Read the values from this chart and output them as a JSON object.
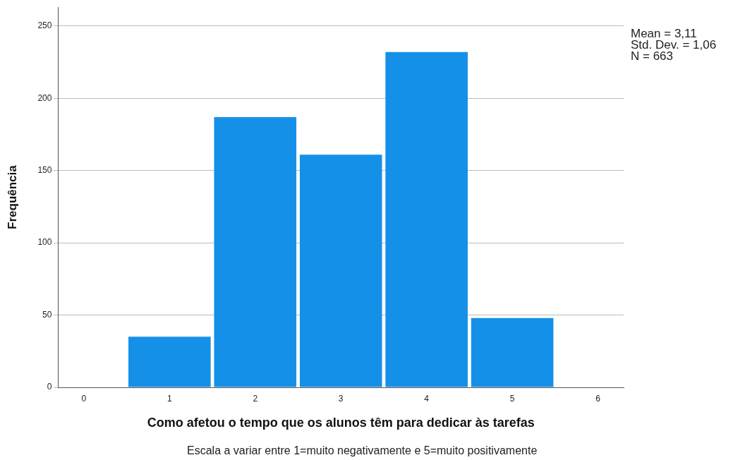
{
  "chart_data": {
    "type": "histogram",
    "xlabel": "Como afetou o tempo que os alunos têm para dedicar às tarefas",
    "ylabel": "Frequência",
    "bins": [
      0.5,
      1.5,
      2.5,
      3.5,
      4.5,
      5.5
    ],
    "values": [
      35,
      187,
      161,
      232,
      48
    ],
    "color": "#1490e8",
    "xlim": [
      -0.3,
      6.3
    ],
    "xticks": [
      0,
      1,
      2,
      3,
      4,
      5,
      6
    ],
    "ylim": [
      0,
      263
    ],
    "yticks": [
      0,
      50,
      100,
      150,
      200,
      250
    ],
    "grid": "y",
    "annotations": [
      "Mean = 3,11",
      "Std. Dev. = 1,06",
      "N = 663",
      "Escala a variar entre 1=muito negativamente e 5=muito positivamente"
    ]
  }
}
